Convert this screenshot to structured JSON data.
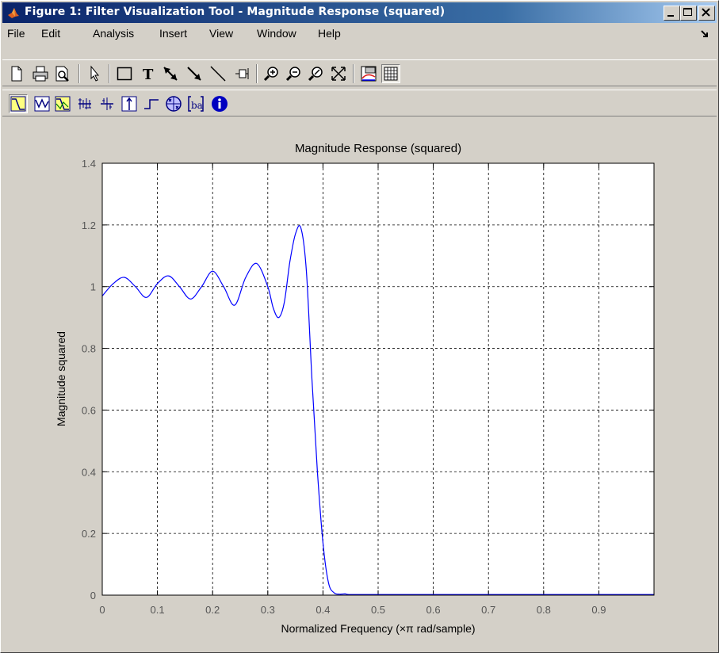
{
  "window": {
    "title": "Figure 1: Filter Visualization Tool - Magnitude Response (squared)",
    "minimize_icon": "minimize-icon",
    "maximize_icon": "maximize-icon",
    "close_icon": "close-icon"
  },
  "menu": {
    "items": [
      "File",
      "Edit",
      "Analysis",
      "Insert",
      "View",
      "Window",
      "Help"
    ]
  },
  "toolbar1": {
    "icons": [
      "new-figure-icon",
      "print-icon",
      "print-preview-icon",
      "edit-plot-arrow-icon",
      "insert-rectangle-icon",
      "insert-text-icon",
      "insert-arrow-icon",
      "insert-line-arrow-icon",
      "insert-line-icon",
      "rotate-3d-icon",
      "zoom-in-icon",
      "zoom-out-icon",
      "zoom-y-icon",
      "full-view-icon",
      "legend-icon",
      "grid-icon"
    ]
  },
  "toolbar2": {
    "icons": [
      "magnitude-response-icon",
      "phase-response-icon",
      "magnitude-phase-icon",
      "group-delay-icon",
      "phase-delay-icon",
      "impulse-response-icon",
      "step-response-icon",
      "pole-zero-icon",
      "filter-coefficients-icon",
      "filter-information-icon"
    ]
  },
  "chart_data": {
    "type": "line",
    "title": "Magnitude Response (squared)",
    "xlabel": "Normalized Frequency (×π rad/sample)",
    "ylabel": "Magnitude squared",
    "xlim": [
      0,
      1
    ],
    "ylim": [
      0,
      1.4
    ],
    "xticks": [
      "0",
      "0.1",
      "0.2",
      "0.3",
      "0.4",
      "0.5",
      "0.6",
      "0.7",
      "0.8",
      "0.9"
    ],
    "yticks": [
      "0",
      "0.2",
      "0.4",
      "0.6",
      "0.8",
      "1",
      "1.2",
      "1.4"
    ],
    "grid": true,
    "line_color": "#0000ff",
    "series": [
      {
        "x": [
          0,
          0.02,
          0.04,
          0.06,
          0.08,
          0.1,
          0.12,
          0.14,
          0.16,
          0.18,
          0.2,
          0.22,
          0.24,
          0.26,
          0.28,
          0.3,
          0.31,
          0.32,
          0.33,
          0.34,
          0.35,
          0.36,
          0.37,
          0.38,
          0.39,
          0.4,
          0.41,
          0.42,
          0.43,
          0.44,
          0.45,
          0.5,
          0.6,
          0.7,
          0.8,
          0.9,
          1.0
        ],
        "y": [
          0.97,
          1.01,
          1.03,
          1.0,
          0.965,
          1.01,
          1.035,
          1.0,
          0.96,
          1.0,
          1.05,
          1.0,
          0.94,
          1.03,
          1.075,
          1.0,
          0.93,
          0.9,
          0.95,
          1.08,
          1.17,
          1.19,
          1.05,
          0.7,
          0.4,
          0.17,
          0.04,
          0.008,
          0.003,
          0.004,
          0.002,
          0.002,
          0.002,
          0.002,
          0.002,
          0.002,
          0.002
        ]
      }
    ]
  }
}
